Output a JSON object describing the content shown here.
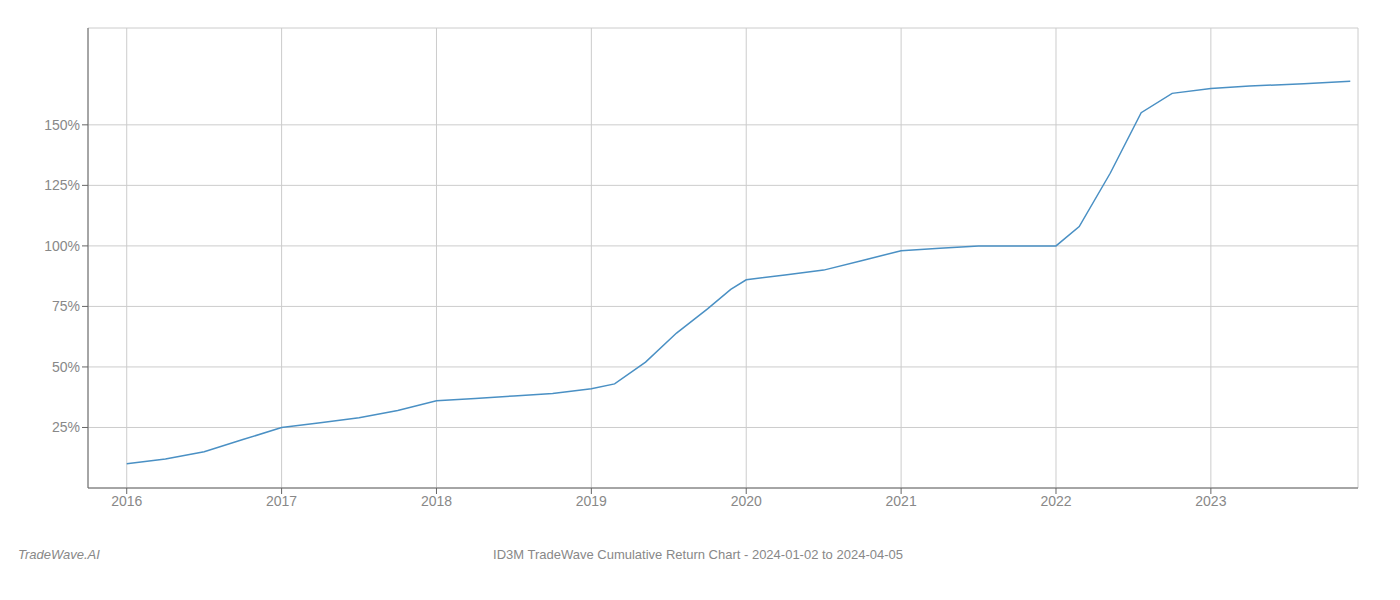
{
  "chart_data": {
    "type": "line",
    "title": "ID3M TradeWave Cumulative Return Chart - 2024-01-02 to 2024-04-05",
    "annotations": [
      "TradeWave.AI"
    ],
    "x": [
      2016.0,
      2016.25,
      2016.5,
      2016.75,
      2017.0,
      2017.25,
      2017.5,
      2017.75,
      2018.0,
      2018.25,
      2018.5,
      2018.75,
      2019.0,
      2019.15,
      2019.35,
      2019.55,
      2019.75,
      2019.9,
      2020.0,
      2020.25,
      2020.5,
      2020.75,
      2021.0,
      2021.25,
      2021.5,
      2021.75,
      2022.0,
      2022.15,
      2022.35,
      2022.55,
      2022.75,
      2023.0,
      2023.25,
      2023.6,
      2023.9
    ],
    "values": [
      10,
      12,
      15,
      20,
      25,
      27,
      29,
      32,
      36,
      37,
      38,
      39,
      41,
      43,
      52,
      64,
      74,
      82,
      86,
      88,
      90,
      94,
      98,
      99,
      100,
      100,
      100,
      108,
      130,
      155,
      163,
      165,
      166,
      167,
      168
    ],
    "color": "#4a90c4",
    "xlim": [
      2015.75,
      2023.95
    ],
    "xticks": [
      2016,
      2017,
      2018,
      2019,
      2020,
      2021,
      2022,
      2023
    ],
    "ylim": [
      0,
      190
    ],
    "yticks": [
      {
        "value": 25,
        "label": "25%"
      },
      {
        "value": 50,
        "label": "50%"
      },
      {
        "value": 75,
        "label": "75%"
      },
      {
        "value": 100,
        "label": "100%"
      },
      {
        "value": 125,
        "label": "125%"
      },
      {
        "value": 150,
        "label": "150%"
      }
    ],
    "grid": true
  }
}
